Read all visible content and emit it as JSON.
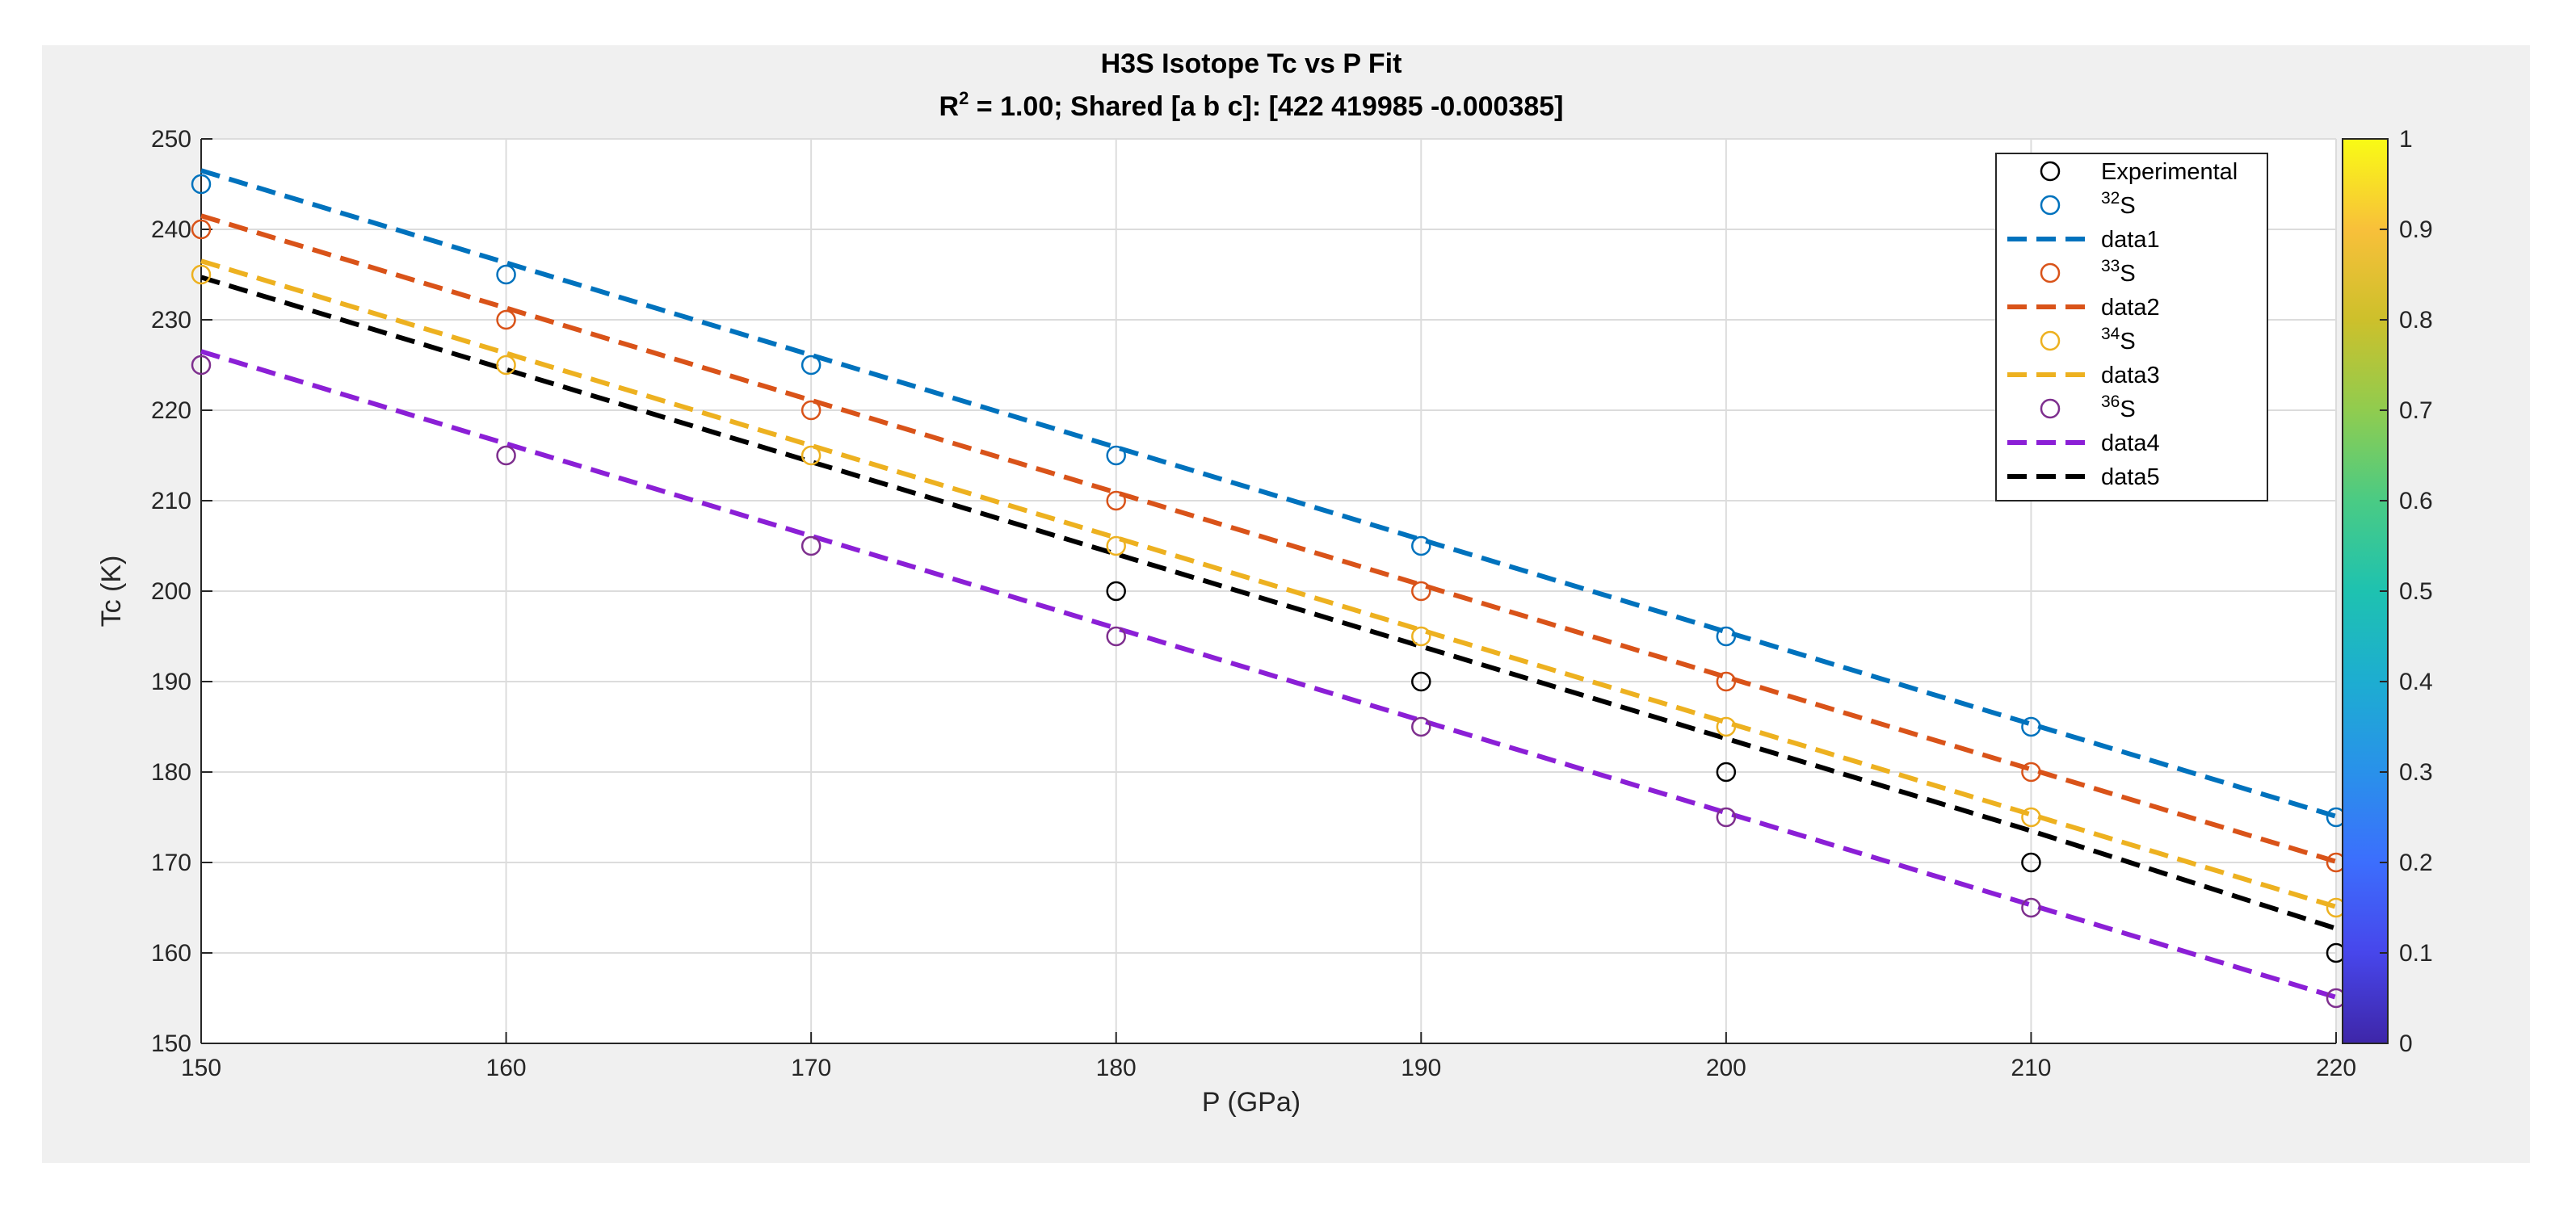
{
  "chart_data": {
    "type": "scatter",
    "title": "H3S  Isotope  Tc  vs  P  Fit",
    "subtitle": {
      "prefix": "R",
      "sup": "2",
      "text": " = 1.00; Shared [a  b  c]: [422  419985  -0.000385]"
    },
    "xlabel": "P (GPa)",
    "ylabel": "Tc (K)",
    "xlim": [
      150,
      220
    ],
    "ylim": [
      150,
      250
    ],
    "xticks": [
      150,
      160,
      170,
      180,
      190,
      200,
      210,
      220
    ],
    "yticks": [
      150,
      160,
      170,
      180,
      190,
      200,
      210,
      220,
      230,
      240,
      250
    ],
    "grid": true,
    "legend_position": "top-right",
    "x": [
      150,
      160,
      170,
      180,
      190,
      200,
      210,
      220
    ],
    "series": [
      {
        "name": "Experimental",
        "kind": "markers",
        "color": "#000000",
        "x": [
          180,
          190,
          200,
          210,
          220
        ],
        "values": [
          200,
          190,
          180,
          170,
          160
        ]
      },
      {
        "name_prefix": "32",
        "name": "S",
        "kind": "markers",
        "color": "#0072BD",
        "values": [
          245,
          235,
          225,
          215,
          205,
          195,
          185,
          175
        ]
      },
      {
        "name": "data1",
        "kind": "line",
        "color": "#0072BD",
        "values": [
          246.5,
          236.3,
          226.1,
          215.9,
          205.7,
          195.5,
          185.3,
          175.1
        ]
      },
      {
        "name_prefix": "33",
        "name": "S",
        "kind": "markers",
        "color": "#D95319",
        "values": [
          240,
          230,
          220,
          210,
          200,
          190,
          180,
          170
        ]
      },
      {
        "name": "data2",
        "kind": "line",
        "color": "#D95319",
        "values": [
          241.5,
          231.3,
          221.1,
          210.9,
          200.7,
          190.5,
          180.3,
          170.1
        ]
      },
      {
        "name_prefix": "34",
        "name": "S",
        "kind": "markers",
        "color": "#EDB120",
        "values": [
          235,
          225,
          215,
          205,
          195,
          185,
          175,
          165
        ]
      },
      {
        "name": "data3",
        "kind": "line",
        "color": "#EDB120",
        "values": [
          236.5,
          226.3,
          216.1,
          205.9,
          195.7,
          185.5,
          175.3,
          165.1
        ]
      },
      {
        "name_prefix": "36",
        "name": "S",
        "kind": "markers",
        "color": "#7E2F8E",
        "values": [
          225,
          215,
          205,
          195,
          185,
          175,
          165,
          155
        ]
      },
      {
        "name": "data4",
        "kind": "line",
        "color": "#8B1FD6",
        "values": [
          226.5,
          216.3,
          206.1,
          195.9,
          185.7,
          175.5,
          165.3,
          155.1
        ]
      },
      {
        "name": "data5",
        "kind": "line",
        "color": "#000000",
        "values": [
          234.7,
          224.5,
          214.3,
          204.1,
          193.9,
          183.7,
          173.5,
          162.7
        ]
      }
    ],
    "colorbar": {
      "ticks": [
        0,
        0.1,
        0.2,
        0.3,
        0.4,
        0.5,
        0.6,
        0.7,
        0.8,
        0.9,
        1
      ],
      "tick_labels": [
        "0",
        "0.1",
        "0.2",
        "0.3",
        "0.4",
        "0.5",
        "0.6",
        "0.7",
        "0.8",
        "0.9",
        "1"
      ],
      "colormap": [
        "#3E26A8",
        "#4746EB",
        "#3C6EFD",
        "#2991EA",
        "#1DADD1",
        "#1EC2B0",
        "#4ACB84",
        "#90CC4F",
        "#CDC02B",
        "#F8C03A",
        "#F9FB15"
      ]
    }
  }
}
